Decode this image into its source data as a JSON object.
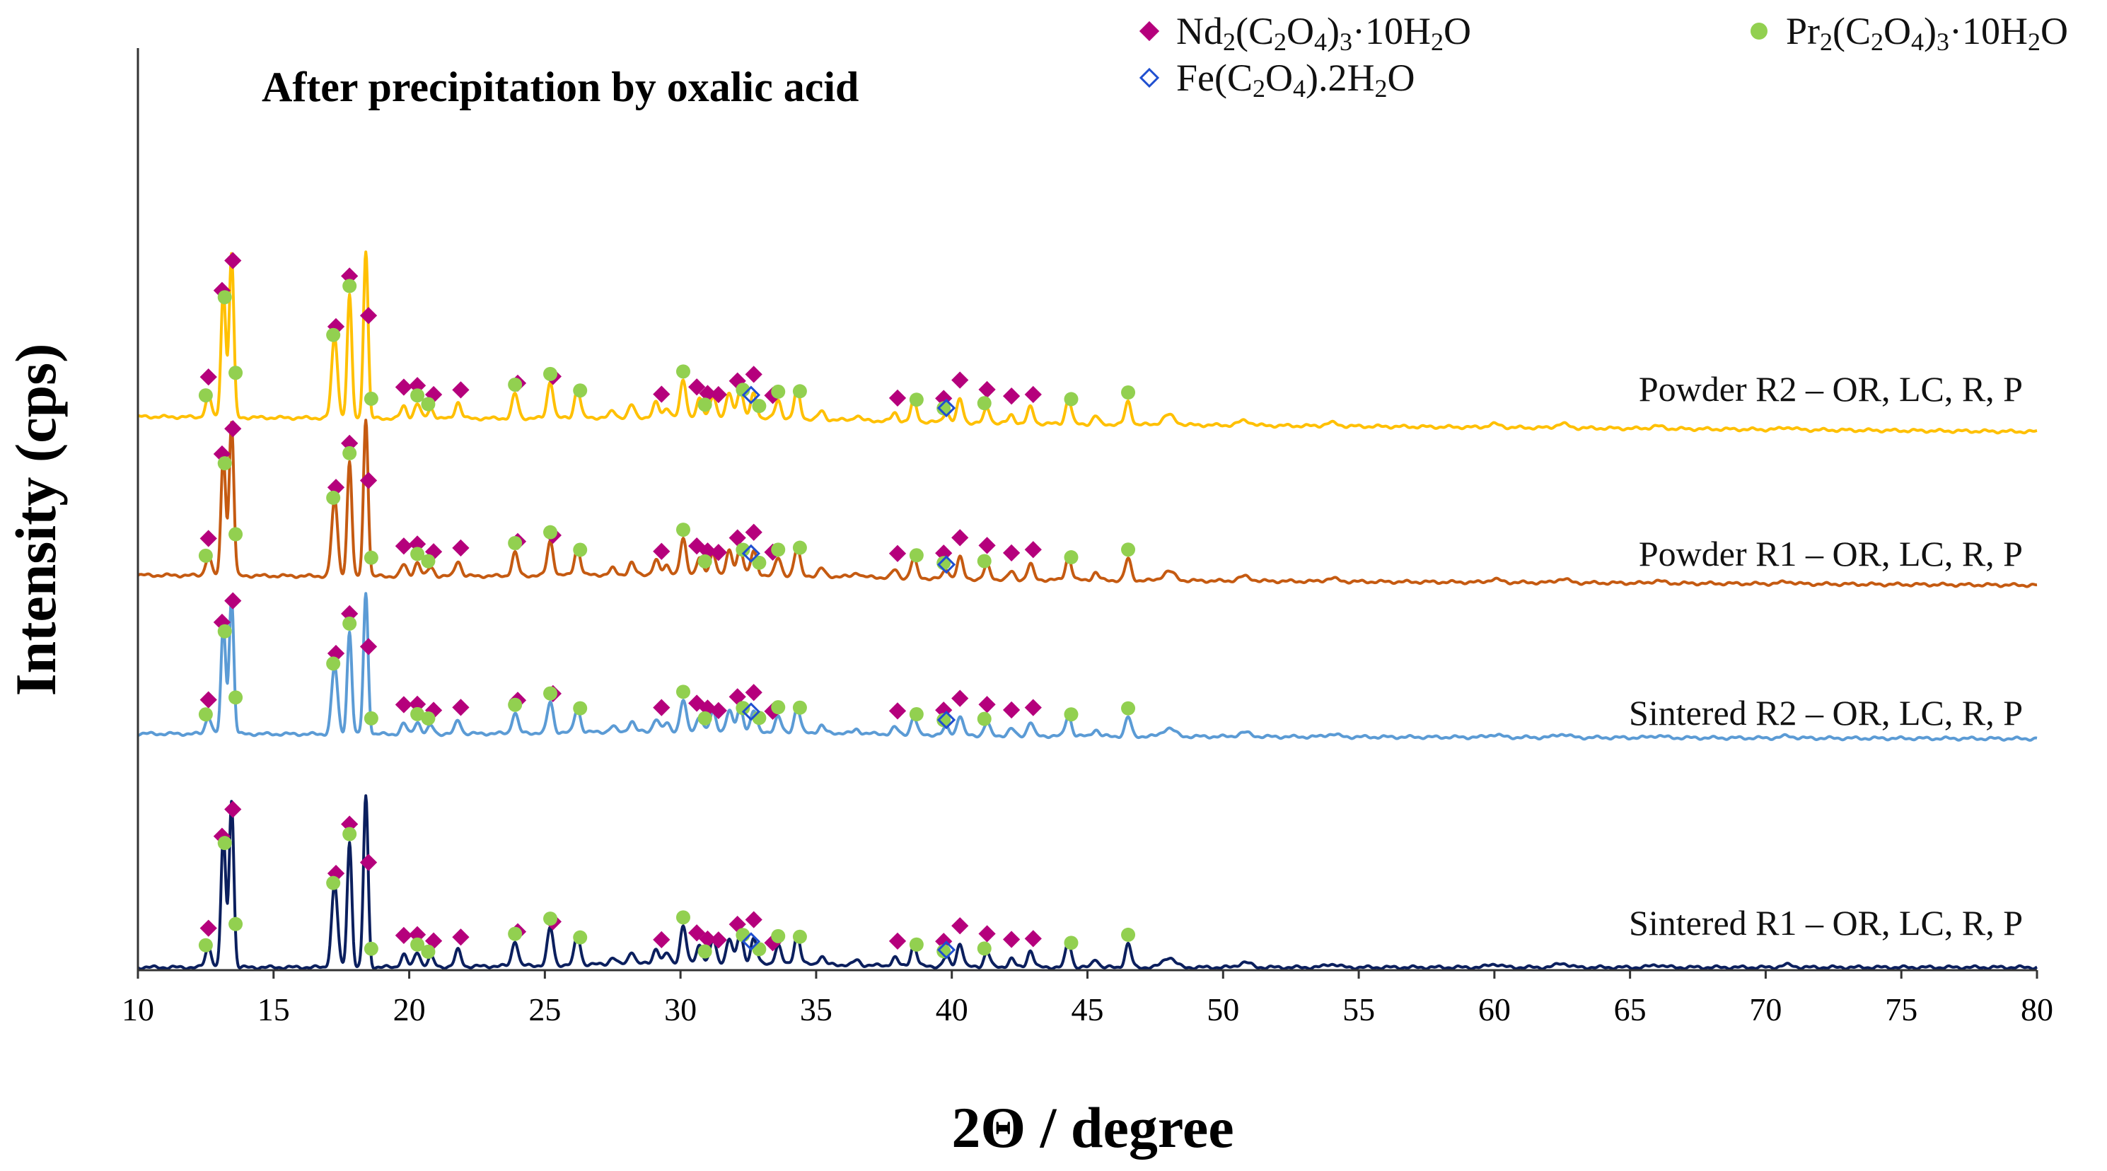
{
  "chart_data": {
    "type": "line",
    "title": "After precipitation by oxalic acid",
    "xlabel": "2Θ / degree",
    "ylabel": "Intensity (cps)",
    "xlim": [
      10,
      80
    ],
    "x_ticks": [
      10,
      15,
      20,
      25,
      30,
      35,
      40,
      45,
      50,
      55,
      60,
      65,
      70,
      75,
      80
    ],
    "stacked": true,
    "series": [
      {
        "name": "Sintered R1 – OR, LC, R, P",
        "color": "#0b1f5e",
        "baseline": 0,
        "peak_scale": 1.0
      },
      {
        "name": "Sintered R2 – OR, LC, R, P",
        "color": "#5b9bd5",
        "baseline": 2.8,
        "peak_scale": 0.82
      },
      {
        "name": "Powder R1 – OR, LC, R, P",
        "color": "#c55a11",
        "baseline": 4.7,
        "peak_scale": 0.92
      },
      {
        "name": "Powder R2 – OR, LC, R, P",
        "color": "#ffc000",
        "baseline": 6.6,
        "peak_scale": 0.98
      }
    ],
    "peaks": [
      {
        "x": 12.6,
        "h": 0.25
      },
      {
        "x": 13.15,
        "h": 1.6
      },
      {
        "x": 13.45,
        "h": 2.0
      },
      {
        "x": 17.25,
        "h": 1.0
      },
      {
        "x": 17.8,
        "h": 1.5
      },
      {
        "x": 18.4,
        "h": 2.05
      },
      {
        "x": 19.8,
        "h": 0.15
      },
      {
        "x": 20.3,
        "h": 0.18
      },
      {
        "x": 20.8,
        "h": 0.12
      },
      {
        "x": 21.8,
        "h": 0.2
      },
      {
        "x": 23.9,
        "h": 0.3
      },
      {
        "x": 25.2,
        "h": 0.45
      },
      {
        "x": 26.2,
        "h": 0.35
      },
      {
        "x": 27.5,
        "h": 0.08
      },
      {
        "x": 28.2,
        "h": 0.15
      },
      {
        "x": 29.1,
        "h": 0.18
      },
      {
        "x": 29.5,
        "h": 0.12
      },
      {
        "x": 30.1,
        "h": 0.45
      },
      {
        "x": 30.7,
        "h": 0.22
      },
      {
        "x": 31.2,
        "h": 0.28
      },
      {
        "x": 31.8,
        "h": 0.3
      },
      {
        "x": 32.2,
        "h": 0.35
      },
      {
        "x": 32.7,
        "h": 0.3
      },
      {
        "x": 33.6,
        "h": 0.22
      },
      {
        "x": 34.3,
        "h": 0.35
      },
      {
        "x": 35.2,
        "h": 0.1
      },
      {
        "x": 36.5,
        "h": 0.06
      },
      {
        "x": 37.9,
        "h": 0.1
      },
      {
        "x": 38.6,
        "h": 0.25
      },
      {
        "x": 39.8,
        "h": 0.12
      },
      {
        "x": 40.3,
        "h": 0.28
      },
      {
        "x": 41.3,
        "h": 0.18
      },
      {
        "x": 42.2,
        "h": 0.1
      },
      {
        "x": 42.9,
        "h": 0.2
      },
      {
        "x": 44.3,
        "h": 0.3
      },
      {
        "x": 45.3,
        "h": 0.1
      },
      {
        "x": 46.5,
        "h": 0.28
      },
      {
        "x": 48.0,
        "h": 0.12
      },
      {
        "x": 50.8,
        "h": 0.06
      },
      {
        "x": 54.0,
        "h": 0.04
      },
      {
        "x": 60.0,
        "h": 0.04
      },
      {
        "x": 62.5,
        "h": 0.05
      },
      {
        "x": 66.0,
        "h": 0.03
      },
      {
        "x": 70.8,
        "h": 0.03
      }
    ],
    "legend": [
      {
        "label_parts": [
          [
            "Nd",
            ""
          ],
          [
            "2",
            "sub"
          ],
          [
            "(C",
            ""
          ],
          [
            "2",
            "sub"
          ],
          [
            "O",
            ""
          ],
          [
            "4",
            "sub"
          ],
          [
            ")",
            ""
          ],
          [
            "3",
            "sub"
          ],
          [
            "·10H",
            ""
          ],
          [
            "2",
            "sub"
          ],
          [
            "O",
            ""
          ]
        ],
        "marker": "diamond-filled",
        "color": "#b5007c"
      },
      {
        "label_parts": [
          [
            "Pr",
            ""
          ],
          [
            "2",
            "sub"
          ],
          [
            "(C",
            ""
          ],
          [
            "2",
            "sub"
          ],
          [
            "O",
            ""
          ],
          [
            "4",
            "sub"
          ],
          [
            ")",
            ""
          ],
          [
            "3",
            "sub"
          ],
          [
            "·10H",
            ""
          ],
          [
            "2",
            "sub"
          ],
          [
            "O",
            ""
          ]
        ],
        "marker": "circle-filled",
        "color": "#92d050"
      },
      {
        "label_parts": [
          [
            "Fe(C",
            ""
          ],
          [
            "2",
            "sub"
          ],
          [
            "O",
            ""
          ],
          [
            "4",
            "sub"
          ],
          [
            ").2H",
            ""
          ],
          [
            "2",
            "sub"
          ],
          [
            "O",
            ""
          ]
        ],
        "marker": "diamond-open",
        "color": "#1f4fd0"
      }
    ],
    "markers": {
      "nd": [
        12.6,
        13.1,
        13.5,
        17.3,
        17.8,
        18.5,
        19.8,
        20.3,
        20.9,
        21.9,
        24.0,
        25.3,
        29.3,
        30.6,
        31.0,
        31.4,
        32.1,
        32.7,
        33.4,
        38.0,
        39.7,
        40.3,
        41.3,
        42.2,
        43.0
      ],
      "pr": [
        12.5,
        13.2,
        13.6,
        17.2,
        17.8,
        18.6,
        20.3,
        20.7,
        23.9,
        25.2,
        26.3,
        30.1,
        30.9,
        32.3,
        32.9,
        33.6,
        34.4,
        38.7,
        39.7,
        41.2,
        44.4,
        46.5
      ],
      "fe": [
        32.6,
        39.8
      ]
    }
  }
}
